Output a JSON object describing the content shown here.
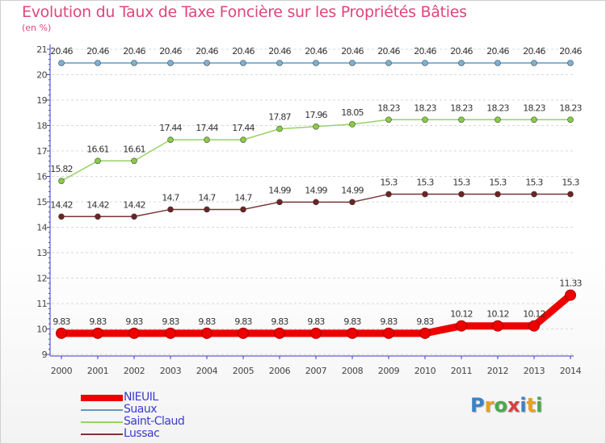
{
  "title": "Evolution du Taux de Taxe Foncière sur les Propriétés Bâties",
  "subtitle": "(en %)",
  "logo": {
    "text": "Proxiti",
    "letters": [
      "P",
      "r",
      "o",
      "x",
      "i",
      "t",
      "i"
    ]
  },
  "colors": {
    "title": "#e0457b",
    "legend_text": "#3a3ad0",
    "axis": "#3a3ad0",
    "grid": "#d8d8d8"
  },
  "chart_data": {
    "type": "line",
    "title": "Evolution du Taux de Taxe Foncière sur les Propriétés Bâties",
    "ylabel": "(en %)",
    "xlabel": "",
    "ylim": [
      9,
      21
    ],
    "yticks": [
      9,
      10,
      11,
      12,
      13,
      14,
      15,
      16,
      17,
      18,
      19,
      20,
      21
    ],
    "grid": true,
    "legend_position": "bottom-left",
    "x": [
      2000,
      2001,
      2002,
      2003,
      2004,
      2005,
      2006,
      2007,
      2008,
      2009,
      2010,
      2011,
      2012,
      2013,
      2014
    ],
    "series": [
      {
        "name": "NIEUIL",
        "color": "#ee0000",
        "marker_fill": "#ee0000",
        "emphasis": "thick",
        "values": [
          9.83,
          9.83,
          9.83,
          9.83,
          9.83,
          9.83,
          9.83,
          9.83,
          9.83,
          9.83,
          9.83,
          10.12,
          10.12,
          10.12,
          11.33
        ],
        "labels": [
          "9.83",
          "9.83",
          "9.83",
          "9.83",
          "9.83",
          "9.83",
          "9.83",
          "9.83",
          "9.83",
          "9.83",
          "9.83",
          "10.12",
          "10.12",
          "10.12",
          "11.33"
        ]
      },
      {
        "name": "Suaux",
        "color": "#5f9bc6",
        "marker_fill": "#7bb0d6",
        "emphasis": "normal",
        "values": [
          20.46,
          20.46,
          20.46,
          20.46,
          20.46,
          20.46,
          20.46,
          20.46,
          20.46,
          20.46,
          20.46,
          20.46,
          20.46,
          20.46,
          20.46
        ],
        "labels": [
          "20.46",
          "20.46",
          "20.46",
          "20.46",
          "20.46",
          "20.46",
          "20.46",
          "20.46",
          "20.46",
          "20.46",
          "20.46",
          "20.46",
          "20.46",
          "20.46",
          "20.46"
        ]
      },
      {
        "name": "Saint-Claud",
        "color": "#99d266",
        "marker_fill": "#88cc44",
        "emphasis": "normal",
        "values": [
          15.82,
          16.61,
          16.61,
          17.44,
          17.44,
          17.44,
          17.87,
          17.96,
          18.05,
          18.23,
          18.23,
          18.23,
          18.23,
          18.23,
          18.23
        ],
        "labels": [
          "15.82",
          "16.61",
          "16.61",
          "17.44",
          "17.44",
          "17.44",
          "17.87",
          "17.96",
          "18.05",
          "18.23",
          "18.23",
          "18.23",
          "18.23",
          "18.23",
          "18.23"
        ]
      },
      {
        "name": "Lussac",
        "color": "#7a3535",
        "marker_fill": "#6b2424",
        "emphasis": "normal",
        "values": [
          14.42,
          14.42,
          14.42,
          14.7,
          14.7,
          14.7,
          14.99,
          14.99,
          14.99,
          15.3,
          15.3,
          15.3,
          15.3,
          15.3,
          15.3
        ],
        "labels": [
          "14.42",
          "14.42",
          "14.42",
          "14.7",
          "14.7",
          "14.7",
          "14.99",
          "14.99",
          "14.99",
          "15.3",
          "15.3",
          "15.3",
          "15.3",
          "15.3",
          "15.3"
        ]
      }
    ]
  }
}
